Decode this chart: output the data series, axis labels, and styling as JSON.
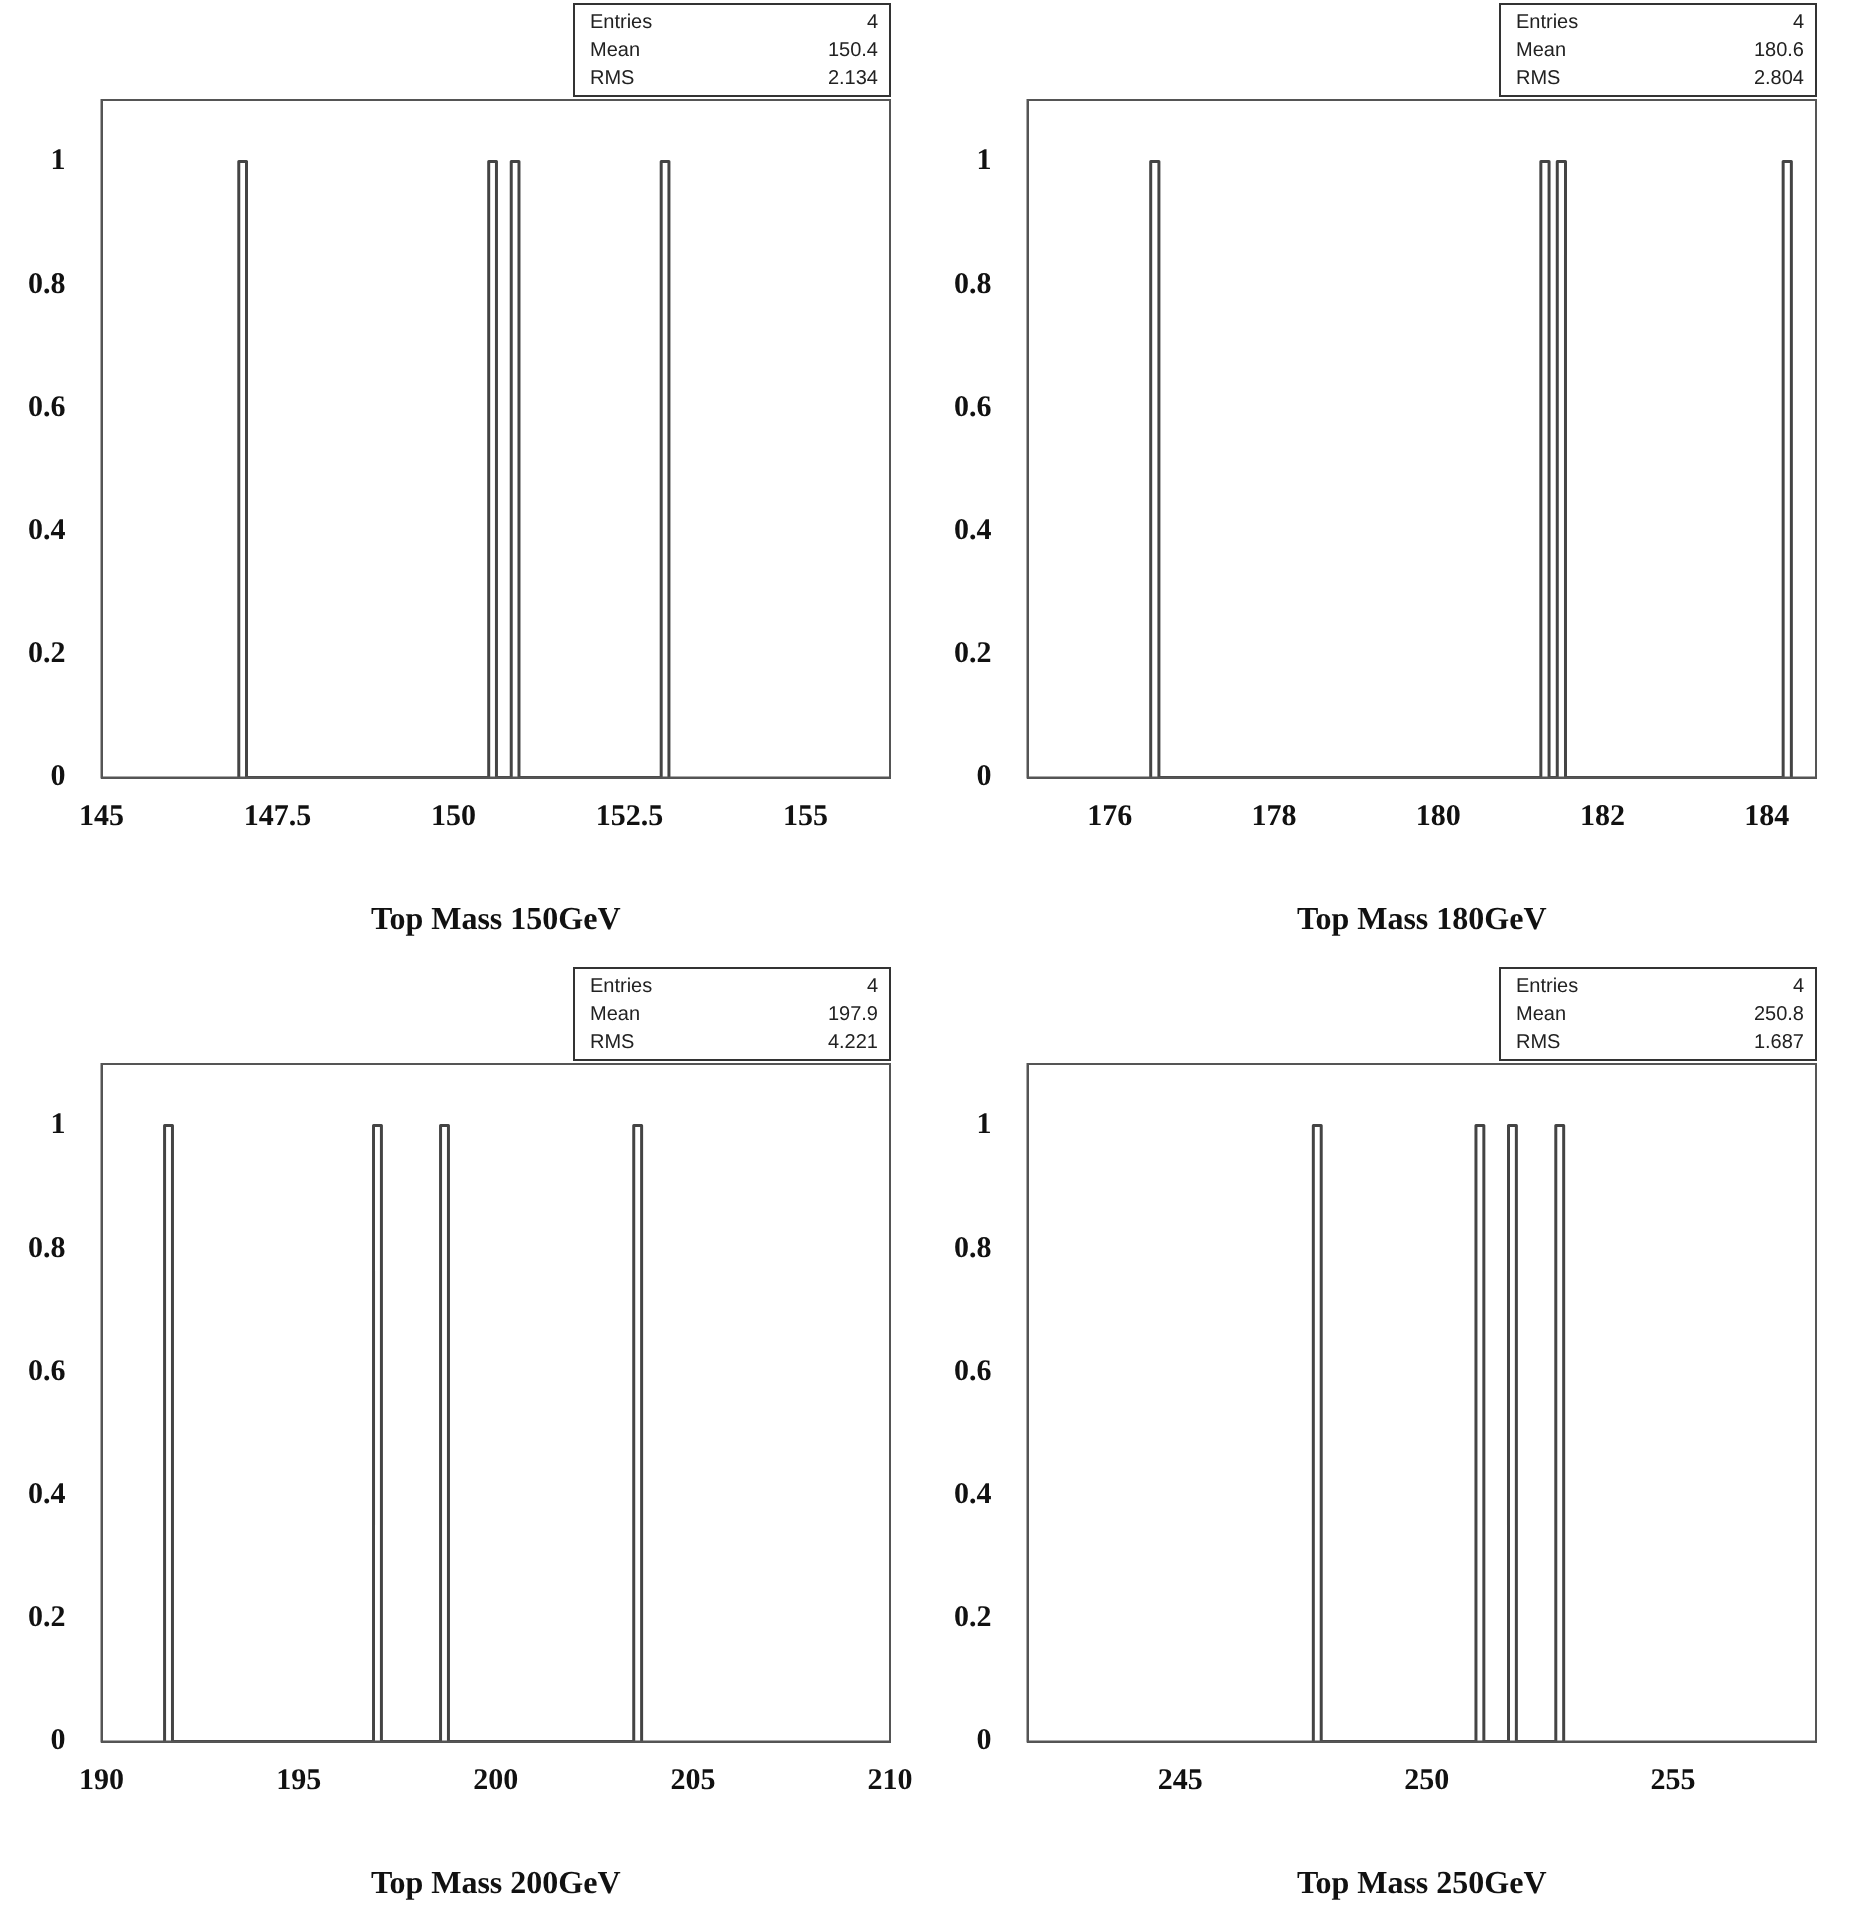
{
  "chart_data": [
    {
      "type": "histogram",
      "xlabel": "Top Mass 150GeV",
      "bins": [
        146.95,
        147.06,
        150.5,
        150.61,
        150.82,
        150.93,
        152.95,
        153.06
      ],
      "values": [
        1,
        0,
        1,
        0,
        1,
        0,
        1
      ],
      "color": "#444444",
      "xlim": [
        145,
        156.2
      ],
      "xticks": [
        145,
        147.5,
        150,
        152.5,
        155
      ],
      "ylim": [
        0,
        1.1
      ],
      "yticks": [
        0,
        0.2,
        0.4,
        0.6,
        0.8,
        1
      ],
      "grid": false,
      "legend": false,
      "annotations": [
        "Entries 4",
        "Mean 150.4",
        "RMS 2.134"
      ]
    },
    {
      "type": "histogram",
      "xlabel": "Top Mass 180GeV",
      "bins": [
        176.5,
        176.6,
        181.25,
        181.35,
        181.45,
        181.55,
        184.2,
        184.3
      ],
      "values": [
        1,
        0,
        1,
        0,
        1,
        0,
        1
      ],
      "color": "#444444",
      "xlim": [
        175,
        184.6
      ],
      "xticks": [
        176,
        178,
        180,
        182,
        184
      ],
      "ylim": [
        0,
        1.1
      ],
      "yticks": [
        0,
        0.2,
        0.4,
        0.6,
        0.8,
        1
      ],
      "grid": false,
      "legend": false,
      "annotations": [
        "Entries 4",
        "Mean 180.6",
        "RMS 2.804"
      ]
    },
    {
      "type": "histogram",
      "xlabel": "Top Mass 200GeV",
      "bins": [
        191.6,
        191.8,
        196.9,
        197.1,
        198.6,
        198.8,
        203.5,
        203.7
      ],
      "values": [
        1,
        0,
        1,
        0,
        1,
        0,
        1
      ],
      "color": "#444444",
      "xlim": [
        190,
        210
      ],
      "xticks": [
        190,
        195,
        200,
        205,
        210
      ],
      "ylim": [
        0,
        1.1
      ],
      "yticks": [
        0,
        0.2,
        0.4,
        0.6,
        0.8,
        1
      ],
      "grid": false,
      "legend": false,
      "annotations": [
        "Entries 4",
        "Mean 197.9",
        "RMS 4.221"
      ]
    },
    {
      "type": "histogram",
      "xlabel": "Top Mass 250GeV",
      "bins": [
        247.7,
        247.86,
        251.0,
        251.16,
        251.66,
        251.82,
        252.62,
        252.78
      ],
      "values": [
        1,
        0,
        1,
        0,
        1,
        0,
        1
      ],
      "color": "#444444",
      "xlim": [
        241.9,
        257.9
      ],
      "xticks": [
        245,
        250,
        255
      ],
      "ylim": [
        0,
        1.1
      ],
      "yticks": [
        0,
        0.2,
        0.4,
        0.6,
        0.8,
        1
      ],
      "grid": false,
      "legend": false,
      "annotations": [
        "Entries 4",
        "Mean 250.8",
        "RMS 1.687"
      ]
    }
  ]
}
